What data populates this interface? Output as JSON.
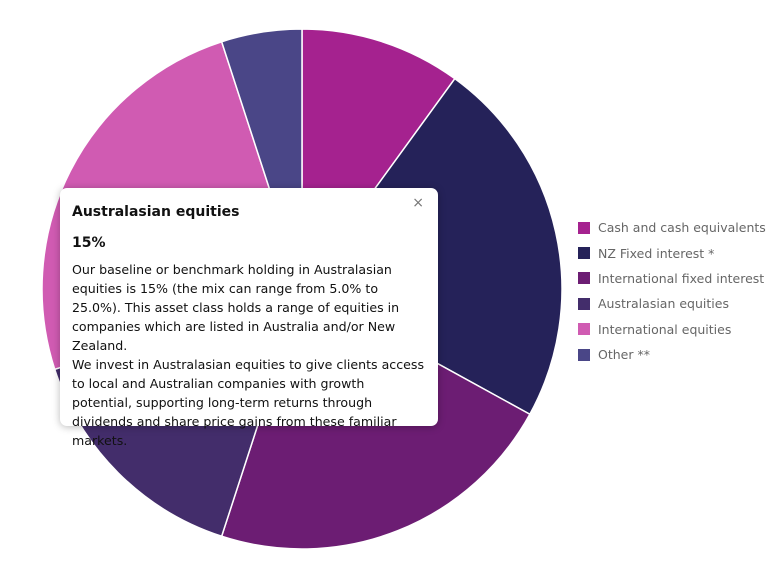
{
  "chart_data": {
    "type": "pie",
    "donut": true,
    "title": "",
    "categories": [
      "Cash and cash equivalents",
      "NZ Fixed interest *",
      "International fixed interest",
      "Australasian equities",
      "International equities",
      "Other **"
    ],
    "values": [
      10,
      23,
      22,
      15,
      25,
      5
    ],
    "colors": [
      "#A5228F",
      "#252259",
      "#6C1D73",
      "#432D6B",
      "#D05BB2",
      "#4A4687"
    ],
    "legend_position": "right"
  },
  "tooltip": {
    "title": "Australasian equities",
    "value": "15%",
    "paragraph_1": "Our baseline or benchmark holding in Australasian equities is 15% (the mix can range from 5.0% to 25.0%). This asset class holds a range of equities in companies which are listed in Australia and/or New Zealand.",
    "paragraph_2": "We invest in Australasian equities to give clients access to local and Australian companies with growth potential, supporting long-term returns through dividends and share price gains from these familiar markets.",
    "close_label": "×"
  }
}
